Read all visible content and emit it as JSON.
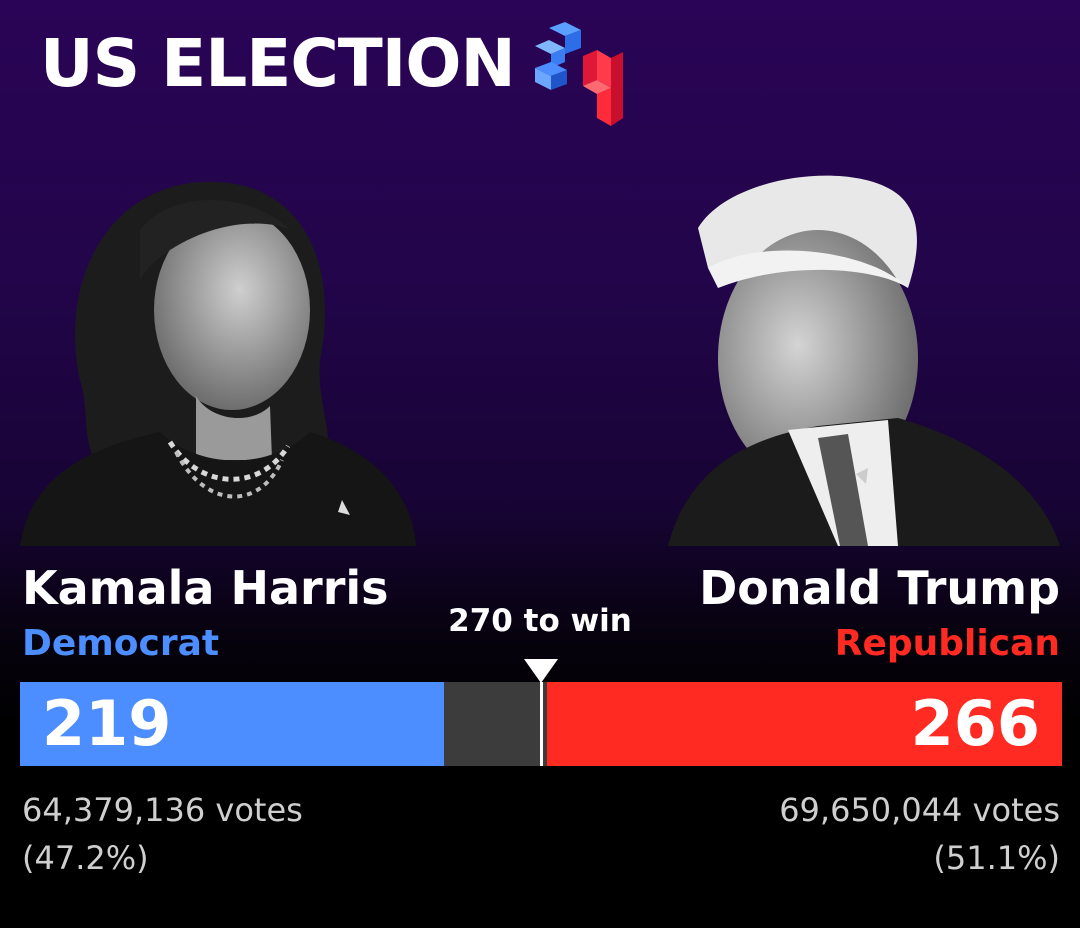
{
  "header": {
    "title": "US ELECTION",
    "logo_icon": "election-24-logo-icon"
  },
  "win_threshold": {
    "label": "270 to win",
    "value": 270,
    "total": 538
  },
  "candidates": [
    {
      "name": "Kamala Harris",
      "party": "Democrat",
      "electoral_votes": "219",
      "electoral_value": 219,
      "popular_votes": "64,379,136 votes",
      "popular_share": "(47.2%)",
      "color": "#4c8dff",
      "photo_icon": "portrait-harris-icon"
    },
    {
      "name": "Donald Trump",
      "party": "Republican",
      "electoral_votes": "266",
      "electoral_value": 266,
      "popular_votes": "69,650,044 votes",
      "popular_share": "(51.1%)",
      "color": "#ff2a22",
      "photo_icon": "portrait-trump-icon"
    }
  ],
  "colors": {
    "background_top": "#2a0456",
    "undecided": "#3c3c3c"
  }
}
